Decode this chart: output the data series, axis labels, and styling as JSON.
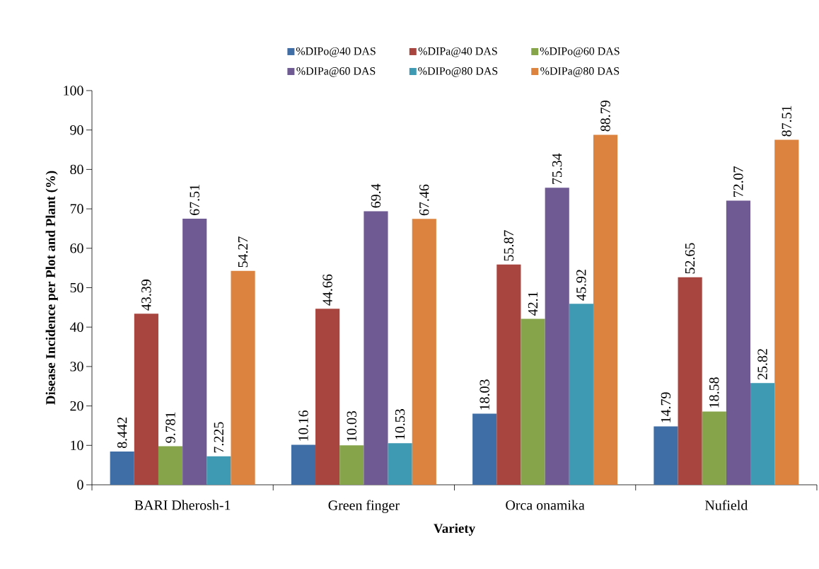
{
  "chart_data": {
    "type": "bar",
    "xlabel": "Variety",
    "ylabel": "Disease Incidence per Plot and Plant (%)",
    "categories": [
      "BARI Dherosh-1",
      "Green finger",
      "Orca onamika",
      "Nufield"
    ],
    "series": [
      {
        "name": "%DIPo@40 DAS",
        "color": "#3f6ea6",
        "values": [
          8.442,
          10.16,
          18.03,
          14.79
        ]
      },
      {
        "name": "%DIPa@40 DAS",
        "color": "#a8453f",
        "values": [
          43.39,
          44.66,
          55.87,
          52.65
        ]
      },
      {
        "name": "%DIPo@60 DAS",
        "color": "#86a44a",
        "values": [
          9.781,
          10.03,
          42.1,
          18.58
        ]
      },
      {
        "name": "%DIPa@60 DAS",
        "color": "#6f5a94",
        "values": [
          67.51,
          69.4,
          75.34,
          72.07
        ]
      },
      {
        "name": "%DIPo@80 DAS",
        "color": "#3d9ab2",
        "values": [
          7.225,
          10.53,
          45.92,
          25.82
        ]
      },
      {
        "name": "%DIPa@80 DAS",
        "color": "#dc843f",
        "values": [
          54.27,
          67.46,
          88.79,
          87.51
        ]
      }
    ],
    "ylim": [
      0,
      100
    ],
    "yticks": [
      0,
      10,
      20,
      30,
      40,
      50,
      60,
      70,
      80,
      90,
      100
    ],
    "data_labels": true,
    "legend": "top",
    "grid": false
  }
}
